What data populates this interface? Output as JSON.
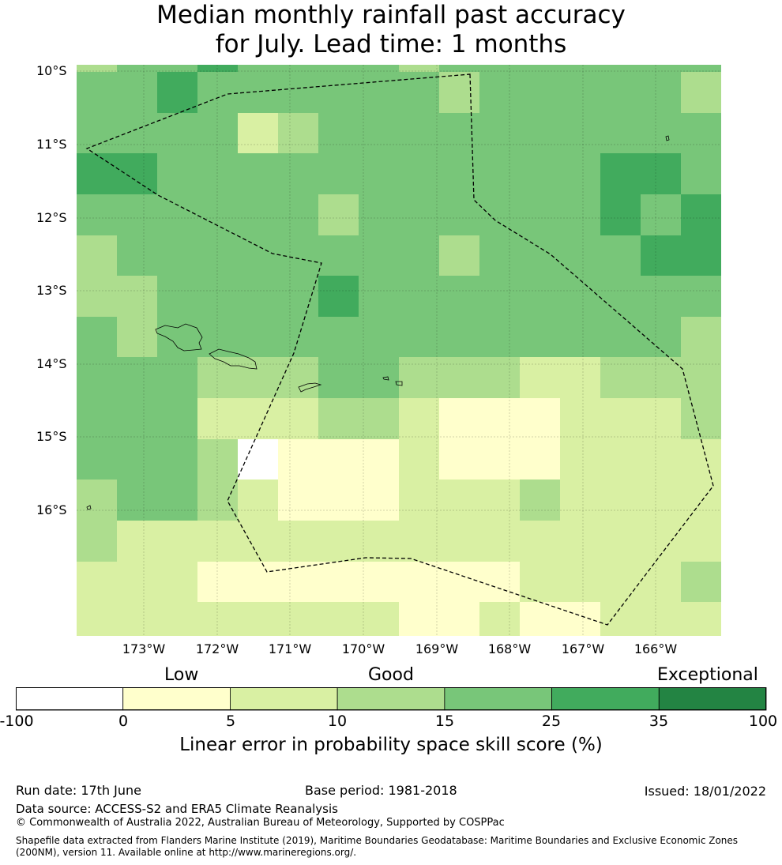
{
  "title": {
    "line1": "Median monthly rainfall past accuracy",
    "line2": "for July. Lead time: 1 months"
  },
  "map": {
    "lat_labels": [
      "10°S",
      "11°S",
      "12°S",
      "13°S",
      "14°S",
      "15°S",
      "16°S"
    ],
    "lon_labels": [
      "173°W",
      "172°W",
      "171°W",
      "170°W",
      "169°W",
      "168°W",
      "167°W",
      "166°W"
    ],
    "grid": [
      [
        3,
        4,
        4,
        5,
        4,
        4,
        4,
        4,
        3,
        4,
        4,
        4,
        4,
        4,
        4,
        4
      ],
      [
        4,
        4,
        5,
        4,
        4,
        4,
        4,
        4,
        4,
        3,
        4,
        4,
        4,
        4,
        4,
        3
      ],
      [
        4,
        4,
        4,
        4,
        2,
        3,
        4,
        4,
        4,
        4,
        4,
        4,
        4,
        4,
        4,
        4
      ],
      [
        5,
        5,
        4,
        4,
        4,
        4,
        4,
        4,
        4,
        4,
        4,
        4,
        4,
        5,
        5,
        4
      ],
      [
        4,
        4,
        4,
        4,
        4,
        4,
        3,
        4,
        4,
        4,
        4,
        4,
        4,
        5,
        4,
        5
      ],
      [
        3,
        4,
        4,
        4,
        4,
        4,
        4,
        4,
        4,
        3,
        4,
        4,
        4,
        4,
        5,
        5
      ],
      [
        3,
        3,
        4,
        4,
        4,
        4,
        5,
        4,
        4,
        4,
        4,
        4,
        4,
        4,
        4,
        4
      ],
      [
        4,
        3,
        4,
        4,
        4,
        4,
        4,
        4,
        4,
        4,
        4,
        4,
        4,
        4,
        4,
        3
      ],
      [
        4,
        4,
        4,
        3,
        3,
        3,
        4,
        4,
        3,
        3,
        3,
        2,
        2,
        3,
        3,
        3
      ],
      [
        4,
        4,
        4,
        2,
        2,
        2,
        3,
        3,
        2,
        1,
        1,
        1,
        2,
        2,
        2,
        3
      ],
      [
        4,
        4,
        4,
        3,
        0,
        1,
        1,
        1,
        2,
        1,
        1,
        1,
        2,
        2,
        2,
        2
      ],
      [
        3,
        4,
        4,
        3,
        2,
        1,
        1,
        1,
        2,
        2,
        2,
        3,
        2,
        2,
        2,
        2
      ],
      [
        3,
        2,
        2,
        2,
        2,
        2,
        2,
        2,
        2,
        2,
        2,
        2,
        2,
        2,
        2,
        2
      ],
      [
        2,
        2,
        2,
        1,
        1,
        1,
        1,
        1,
        1,
        1,
        1,
        2,
        2,
        2,
        2,
        3
      ],
      [
        2,
        2,
        2,
        2,
        2,
        2,
        2,
        2,
        1,
        1,
        2,
        1,
        1,
        2,
        2,
        2
      ]
    ]
  },
  "colorbar": {
    "category_labels": {
      "low": "Low",
      "good": "Good",
      "exceptional": "Exceptional"
    },
    "ticks": [
      "-100",
      "0",
      "5",
      "10",
      "15",
      "25",
      "35",
      "100"
    ],
    "colors": [
      "#ffffff",
      "#ffffcc",
      "#d9f0a3",
      "#addd8e",
      "#78c679",
      "#41ab5d",
      "#238443"
    ],
    "label": "Linear error in probability space skill score (%)"
  },
  "footer": {
    "run_date": "Run date: 17th June",
    "base_period": "Base period: 1981-2018",
    "issued": "Issued: 18/01/2022",
    "data_source": "Data source: ACCESS-S2 and ERA5 Climate Reanalysis",
    "copyright": "© Commonwealth of Australia 2022, Australian Bureau of Meteorology, Supported by COSPPac",
    "shapefile": "Shapefile data extracted from Flanders Marine Institute (2019), Maritime Boundaries Geodatabase: Maritime Boundaries and Exclusive Economic Zones (200NM), version 11. Available online at http://www.marineregions.org/."
  }
}
